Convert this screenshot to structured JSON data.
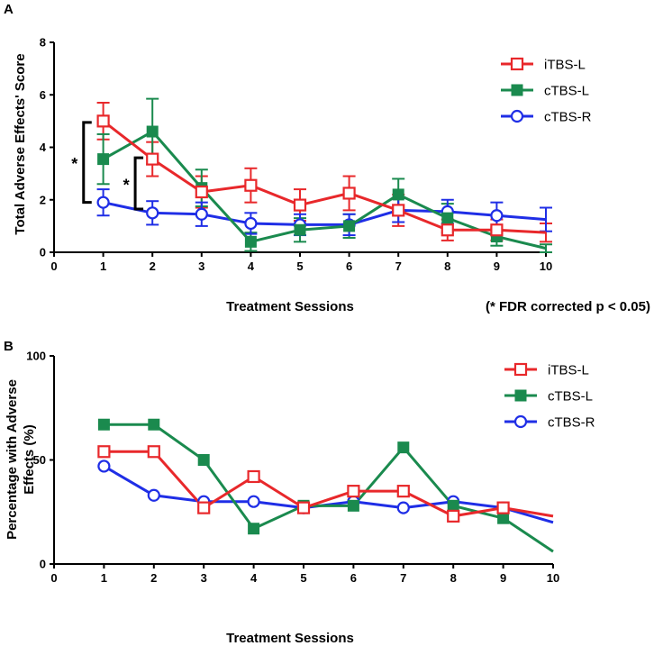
{
  "chart_data": [
    {
      "panel": "A",
      "type": "line",
      "xlabel": "Treatment Sessions",
      "ylabel": "Total Adverse Effects' Score",
      "note": "(* FDR corrected p < 0.05)",
      "significance_marker": "*",
      "xlim": [
        0,
        10
      ],
      "ylim": [
        0,
        8
      ],
      "xticks": [
        "0",
        "1",
        "2",
        "3",
        "4",
        "5",
        "6",
        "7",
        "8",
        "9",
        "10"
      ],
      "yticks": [
        "0",
        "2",
        "4",
        "6",
        "8"
      ],
      "x": [
        1,
        2,
        3,
        4,
        5,
        6,
        7,
        8,
        9,
        10
      ],
      "series": [
        {
          "name": "iTBS-L",
          "color": "#e8282b",
          "marker": "open-square",
          "values": [
            5.0,
            3.55,
            2.3,
            2.55,
            1.8,
            2.25,
            1.6,
            0.85,
            0.85,
            0.75
          ],
          "errors": [
            0.7,
            0.65,
            0.6,
            0.65,
            0.6,
            0.65,
            0.6,
            0.4,
            0.4,
            0.35
          ]
        },
        {
          "name": "cTBS-L",
          "color": "#1a8a4e",
          "marker": "filled-square",
          "values": [
            3.55,
            4.6,
            2.45,
            0.4,
            0.85,
            1.0,
            2.2,
            1.3,
            0.6,
            0.15
          ],
          "errors": [
            0.95,
            1.25,
            0.7,
            0.35,
            0.45,
            0.45,
            0.6,
            0.55,
            0.35,
            0.15
          ]
        },
        {
          "name": "cTBS-R",
          "color": "#1f2ee6",
          "marker": "open-circle",
          "values": [
            1.9,
            1.5,
            1.45,
            1.1,
            1.05,
            1.05,
            1.6,
            1.55,
            1.4,
            1.25
          ],
          "errors": [
            0.5,
            0.45,
            0.45,
            0.4,
            0.4,
            0.4,
            0.45,
            0.45,
            0.5,
            0.45
          ]
        }
      ],
      "brackets": [
        {
          "x": 0.6,
          "y_low": 1.9,
          "y_high": 4.95
        },
        {
          "x": 1.65,
          "y_low": 1.65,
          "y_high": 3.6
        }
      ]
    },
    {
      "panel": "B",
      "type": "line",
      "xlabel": "Treatment Sessions",
      "ylabel": "Percentage with Adverse Effects (%)",
      "ylabel_lines": [
        "Percentage with Adverse",
        "Effects (%)"
      ],
      "xlim": [
        0,
        10
      ],
      "ylim": [
        0,
        100
      ],
      "xticks": [
        "0",
        "1",
        "2",
        "3",
        "4",
        "5",
        "6",
        "7",
        "8",
        "9",
        "10"
      ],
      "yticks": [
        "0",
        "50",
        "100"
      ],
      "x": [
        1,
        2,
        3,
        4,
        5,
        6,
        7,
        8,
        9,
        10
      ],
      "series": [
        {
          "name": "iTBS-L",
          "color": "#e8282b",
          "marker": "open-square",
          "values": [
            54,
            54,
            27,
            42,
            27,
            35,
            35,
            23,
            27,
            23
          ]
        },
        {
          "name": "cTBS-L",
          "color": "#1a8a4e",
          "marker": "filled-square",
          "values": [
            67,
            67,
            50,
            17,
            28,
            28,
            56,
            28,
            22,
            6
          ]
        },
        {
          "name": "cTBS-R",
          "color": "#1f2ee6",
          "marker": "open-circle",
          "values": [
            47,
            33,
            30,
            30,
            27,
            30,
            27,
            30,
            27,
            20
          ]
        }
      ]
    }
  ]
}
